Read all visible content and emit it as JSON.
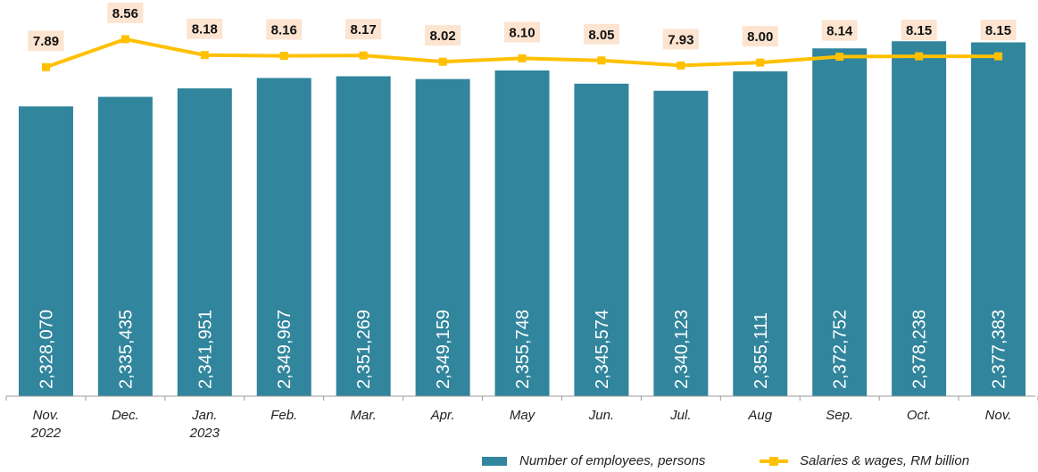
{
  "chart_data": {
    "type": "bar",
    "categories": [
      "Nov.\n2022",
      "Dec.",
      "Jan.\n2023",
      "Feb.",
      "Mar.",
      "Apr.",
      "May",
      "Jun.",
      "Jul.",
      "Aug",
      "Sep.",
      "Oct.",
      "Nov."
    ],
    "ylim": [
      2105000,
      2410000
    ],
    "y2lim": [
      0,
      9.5
    ],
    "series": [
      {
        "name": "Number of employees, persons",
        "type": "bar",
        "color": "#31859c",
        "axis": "y",
        "values": [
          2328070,
          2335435,
          2341951,
          2349967,
          2351269,
          2349159,
          2355748,
          2345574,
          2340123,
          2355111,
          2372752,
          2378238,
          2377383
        ],
        "value_labels": [
          "2,328,070",
          "2,335,435",
          "2,341,951",
          "2,349,967",
          "2,351,269",
          "2,349,159",
          "2,355,748",
          "2,345,574",
          "2,340,123",
          "2,355,111",
          "2,372,752",
          "2,378,238",
          "2,377,383"
        ]
      },
      {
        "name": "Salaries & wages, RM billion",
        "type": "line",
        "color": "#ffc000",
        "axis": "y2",
        "values": [
          7.89,
          8.56,
          8.18,
          8.16,
          8.17,
          8.02,
          8.1,
          8.05,
          7.93,
          8.0,
          8.14,
          8.15,
          8.15
        ],
        "value_labels": [
          "7.89",
          "8.56",
          "8.18",
          "8.16",
          "8.17",
          "8.02",
          "8.10",
          "8.05",
          "7.93",
          "8.00",
          "8.14",
          "8.15",
          "8.15"
        ]
      }
    ]
  }
}
